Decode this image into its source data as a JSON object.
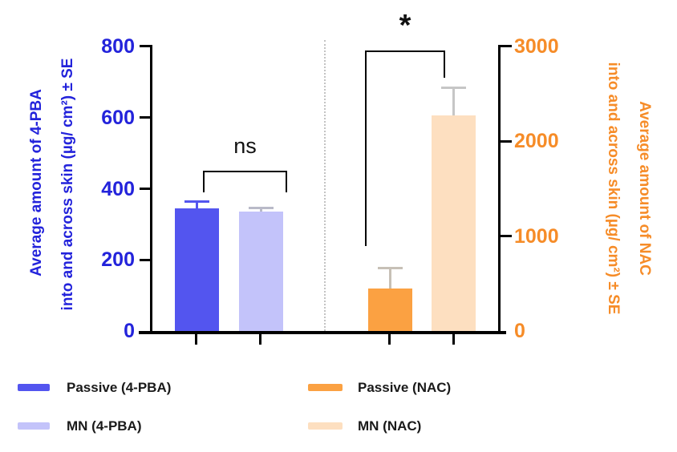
{
  "colors": {
    "passive_4pba": "#5355EF",
    "mn_4pba": "#C3C3FA",
    "passive_nac": "#FBA142",
    "mn_nac": "#FDDFC0",
    "left_axis_text": "#2323DB",
    "right_axis_text": "#F68C28",
    "axis_line": "#000000"
  },
  "left_axis": {
    "title_line1": "Average amount of 4-PBA",
    "title_line2": "into and across skin (µg/ cm²) ± SE",
    "tick_labels": [
      "800",
      "600",
      "400",
      "200",
      "0"
    ]
  },
  "right_axis": {
    "title_line1": "Average amount of NAC",
    "title_line2": "into and across skin (µg/ cm²) ± SE",
    "tick_labels": [
      "3000",
      "2000",
      "1000",
      "0"
    ]
  },
  "annotations": {
    "left_significance": "ns",
    "right_significance": "*"
  },
  "legend": [
    {
      "label": "Passive (4-PBA)",
      "color": "#5355EF"
    },
    {
      "label": "MN (4-PBA)",
      "color": "#C3C3FA"
    },
    {
      "label": "Passive (NAC)",
      "color": "#FBA142"
    },
    {
      "label": "MN (NAC)",
      "color": "#FDDFC0"
    }
  ],
  "chart_data": {
    "type": "bar",
    "dual_y_axis": true,
    "left_ylabel": "Average amount of 4-PBA into and across skin (µg/ cm²) ± SE",
    "right_ylabel": "Average amount of NAC into and across skin (µg/ cm²) ± SE",
    "left_ylim": [
      0,
      800
    ],
    "right_ylim": [
      0,
      3000
    ],
    "left_yticks": [
      0,
      200,
      400,
      600,
      800
    ],
    "right_yticks": [
      0,
      1000,
      2000,
      3000
    ],
    "grid": false,
    "legend_position": "bottom",
    "series": [
      {
        "name": "Passive (4-PBA)",
        "axis": "left",
        "value": 345,
        "se": 15,
        "color": "#5355EF",
        "error_color": "#5355EF"
      },
      {
        "name": "MN (4-PBA)",
        "axis": "left",
        "value": 335,
        "se": 8,
        "color": "#C3C3FA",
        "error_color": "#B9BAC8"
      },
      {
        "name": "Passive (NAC)",
        "axis": "right",
        "value": 450,
        "se": 200,
        "color": "#FBA142",
        "error_color": "#C7C0B6"
      },
      {
        "name": "MN (NAC)",
        "axis": "right",
        "value": 2270,
        "se": 280,
        "color": "#FDDFC0",
        "error_color": "#C6C6C6"
      }
    ],
    "significance": [
      {
        "between": [
          "Passive (4-PBA)",
          "MN (4-PBA)"
        ],
        "label": "ns"
      },
      {
        "between": [
          "Passive (NAC)",
          "MN (NAC)"
        ],
        "label": "*"
      }
    ]
  }
}
